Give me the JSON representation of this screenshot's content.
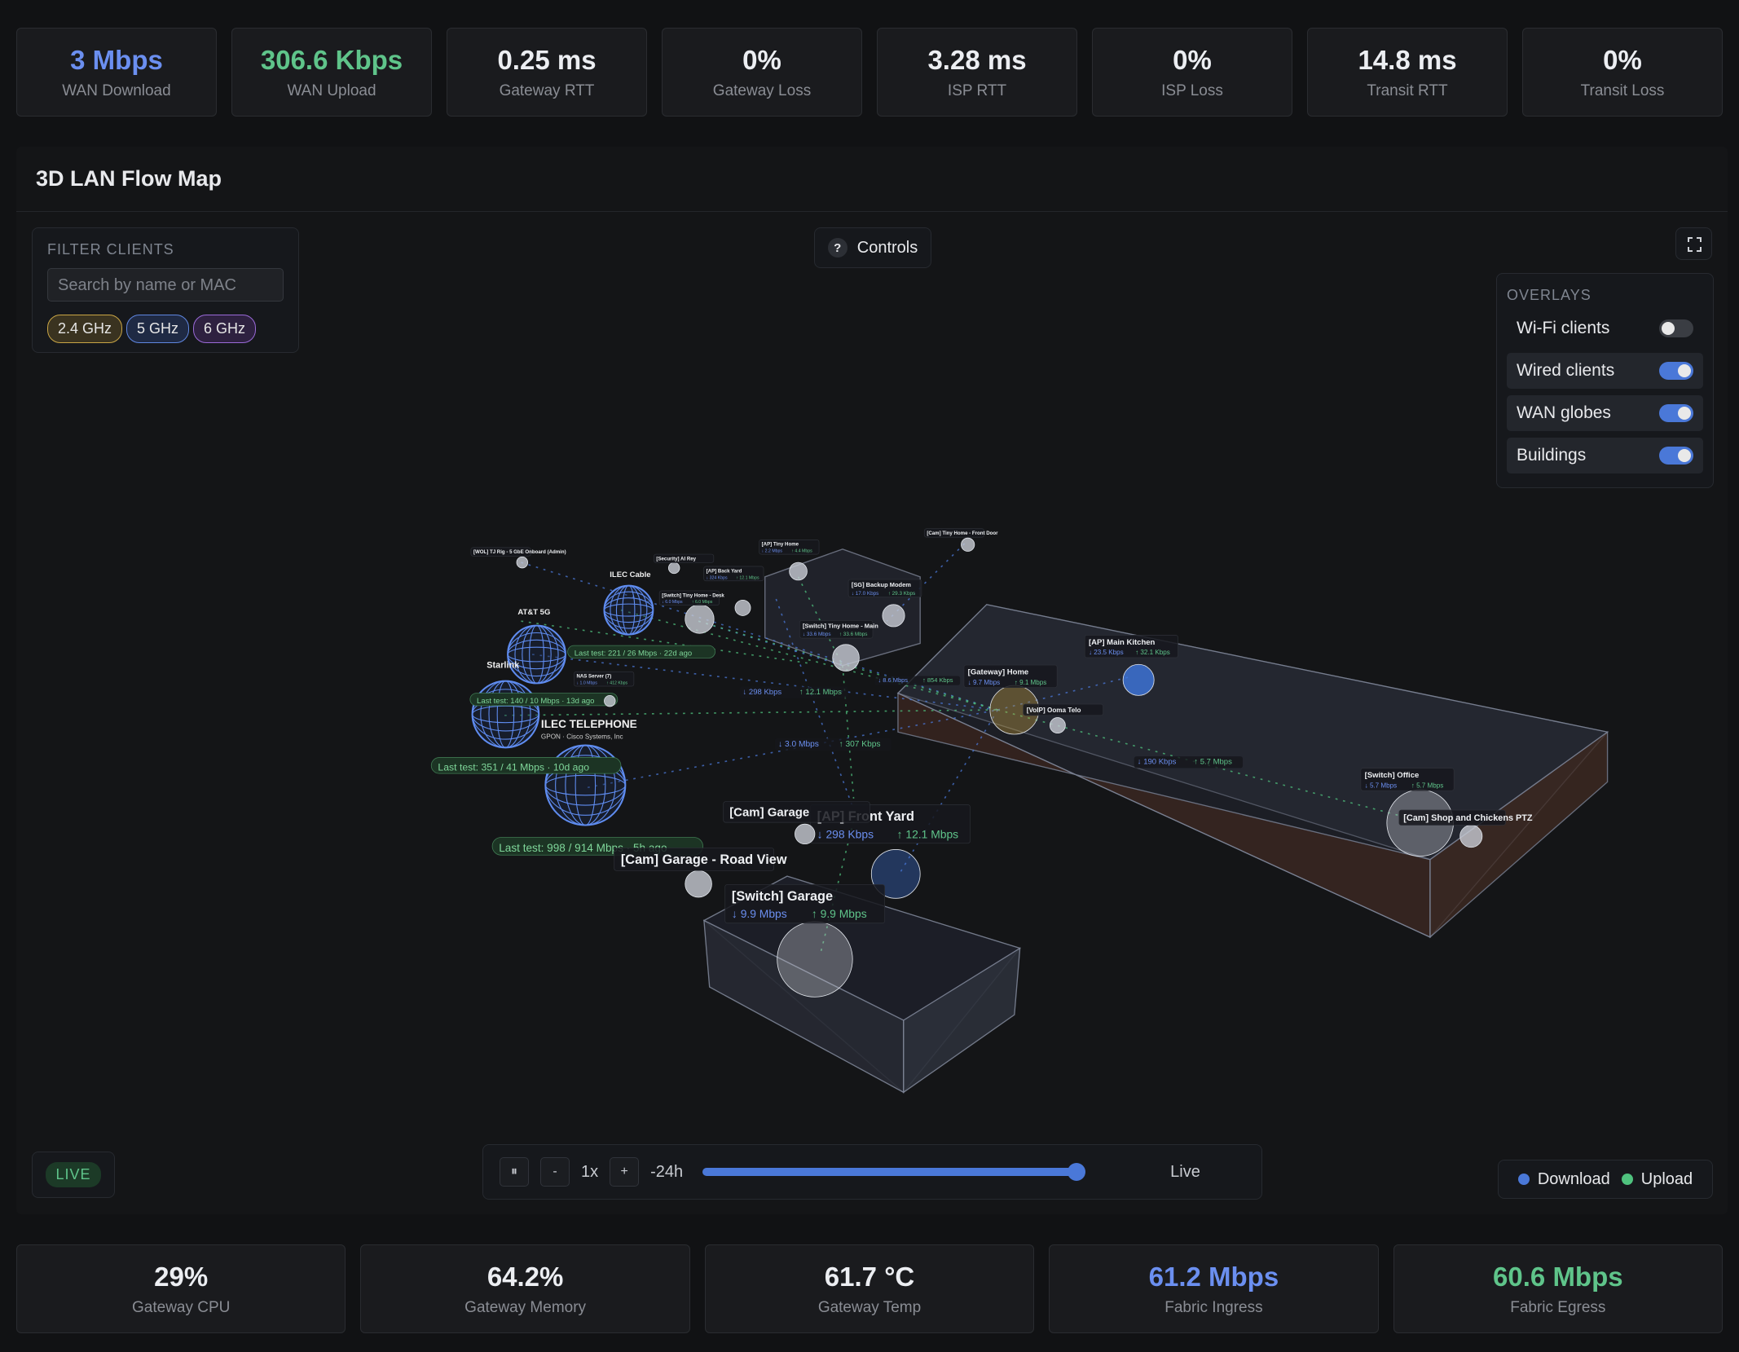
{
  "top_stats": [
    {
      "value": "3 Mbps",
      "label": "WAN Download",
      "color": "#6b8ff0"
    },
    {
      "value": "306.6 Kbps",
      "label": "WAN Upload",
      "color": "#5fc48a"
    },
    {
      "value": "0.25 ms",
      "label": "Gateway RTT"
    },
    {
      "value": "0%",
      "label": "Gateway Loss"
    },
    {
      "value": "3.28 ms",
      "label": "ISP RTT"
    },
    {
      "value": "0%",
      "label": "ISP Loss"
    },
    {
      "value": "14.8 ms",
      "label": "Transit RTT"
    },
    {
      "value": "0%",
      "label": "Transit Loss"
    }
  ],
  "map": {
    "title": "3D LAN Flow Map",
    "filter": {
      "heading": "FILTER CLIENTS",
      "placeholder": "Search by name or MAC",
      "bands": [
        "2.4 GHz",
        "5 GHz",
        "6 GHz"
      ]
    },
    "controls": "Controls",
    "controls_icon": "?",
    "overlays": {
      "heading": "OVERLAYS",
      "items": [
        {
          "label": "Wi-Fi clients",
          "on": false
        },
        {
          "label": "Wired clients",
          "on": true
        },
        {
          "label": "WAN globes",
          "on": true
        },
        {
          "label": "Buildings",
          "on": true
        }
      ]
    },
    "live_badge": "LIVE",
    "playback": {
      "pause": "⏸",
      "minus": "-",
      "speed": "1x",
      "plus": "+",
      "start": "-24h",
      "end": "Live"
    },
    "legend": [
      {
        "name": "Download",
        "color": "#4a78d8"
      },
      {
        "name": "Upload",
        "color": "#4fc27e"
      }
    ],
    "nodes": [
      {
        "label": "[AP] Front Yard",
        "down": "↓ 298 Kbps",
        "up": "↑ 12.1 Mbps"
      },
      {
        "label": "[Switch] Garage",
        "down": "↓ 9.9 Mbps",
        "up": "↑ 9.9 Mbps"
      },
      {
        "label": "[Cam] Garage"
      },
      {
        "label": "[Cam] Garage - Road View"
      },
      {
        "label": "[Gateway] Home",
        "down": "↓ 9.7 Mbps",
        "up": "↑ 9.1 Mbps"
      },
      {
        "label": "[AP] Main Kitchen",
        "down": "↓ 23.5 Kbps",
        "up": "↑ 32.1 Kbps"
      },
      {
        "label": "[VoIP] Ooma Telo"
      },
      {
        "label": "[Switch] Office",
        "down": "↓ 5.7 Mbps",
        "up": "↑ 5.7 Mbps"
      },
      {
        "label": "[Cam] Shop and Chickens PTZ"
      },
      {
        "label": "[Switch] Tiny Home - Main",
        "down": "↓ 33.6 Mbps",
        "up": "↑ 33.6 Mbps"
      },
      {
        "label": "[AP] Tiny Home",
        "down": "↓ 2.2 Mbps",
        "up": "↑ 4.4 Mbps"
      },
      {
        "label": "[AP] Back Yard",
        "down": "↓ 324 Kbps",
        "up": "↑ 12.1 Mbps"
      },
      {
        "label": "[Switch] Tiny Home - Desk",
        "down": "↓ 6.0 Mbps",
        "up": "↑ 6.0 Mbps"
      },
      {
        "label": "[SG] Backup Modem",
        "down": "↓ 17.0 Kbps",
        "up": "↑ 29.3 Kbps"
      },
      {
        "label": "[Cam] Tiny Home - Front Door"
      },
      {
        "label": "NAS Server (7)",
        "down": "↓ 1.0 Mbps",
        "up": "↑ 412 Kbps"
      },
      {
        "label": "[WOL] TJ Rig - 5 GbE Onboard (Admin)"
      },
      {
        "label": "[Security] AI Rey"
      }
    ],
    "globes": [
      {
        "label": "ILEC Cable"
      },
      {
        "label": "AT&T 5G"
      },
      {
        "label": "Starlink"
      },
      {
        "label": "ILEC TELEPHONE",
        "sub": "GPON · Cisco Systems, Inc"
      }
    ],
    "tests": [
      "Last test: 221 / 26 Mbps · 22d ago",
      "Last test: 140 / 10 Mbps · 13d ago",
      "Last test: 351 / 41 Mbps · 10d ago",
      "Last test: 998 / 914 Mbps · 5h ago"
    ],
    "link_rates": [
      {
        "down": "↓ 298 Kbps",
        "up": "↑ 12.1 Mbps"
      },
      {
        "down": "↓ 3.0 Mbps",
        "up": "↑ 307 Kbps"
      },
      {
        "down": "↓ 190 Kbps",
        "up": "↑ 5.7 Mbps"
      },
      {
        "down": "↓ 8.6 Mbps",
        "up": "↑ 854 Kbps"
      }
    ]
  },
  "bottom_stats": [
    {
      "value": "29%",
      "label": "Gateway CPU"
    },
    {
      "value": "64.2%",
      "label": "Gateway Memory"
    },
    {
      "value": "61.7 °C",
      "label": "Gateway Temp"
    },
    {
      "value": "61.2 Mbps",
      "label": "Fabric Ingress",
      "color": "#6b8ff0"
    },
    {
      "value": "60.6 Mbps",
      "label": "Fabric Egress",
      "color": "#5fc48a"
    }
  ]
}
